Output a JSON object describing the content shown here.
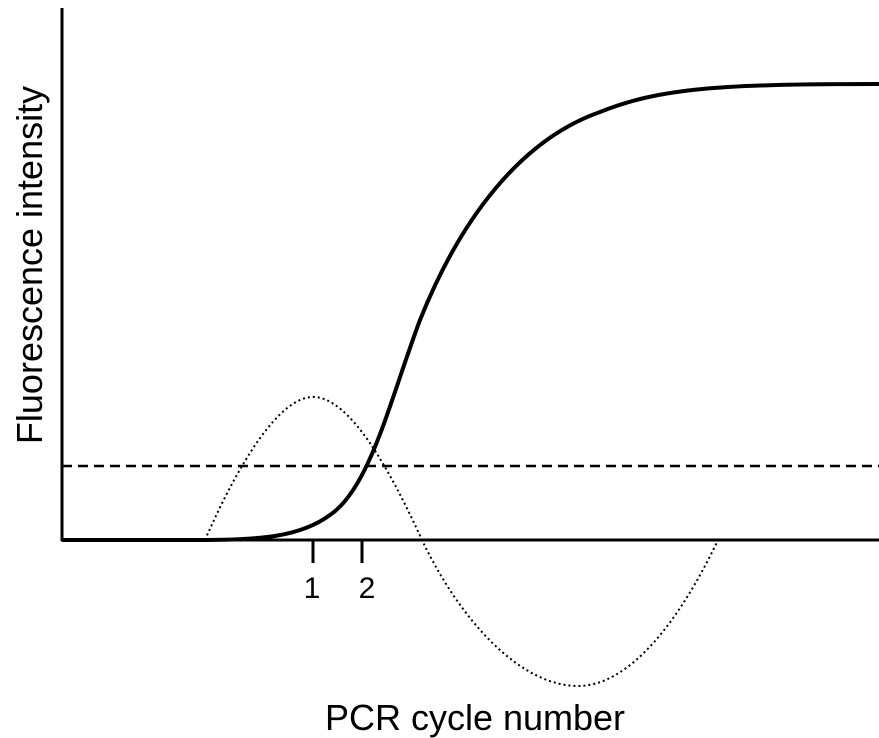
{
  "axes": {
    "x_label": "PCR cycle number",
    "y_label": "Fluorescence intensity"
  },
  "ticks": [
    "1",
    "2"
  ]
}
